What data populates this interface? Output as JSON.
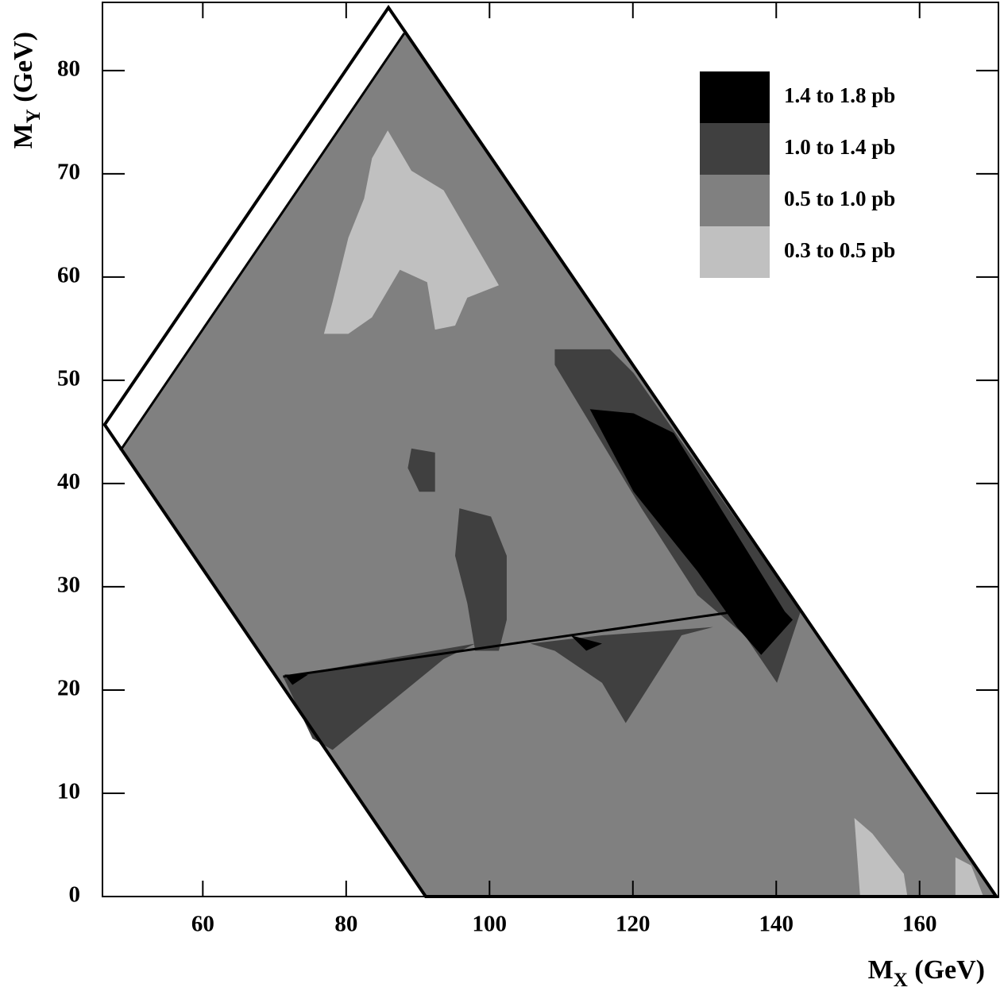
{
  "chart_data": {
    "type": "contour",
    "xlabel": [
      "M",
      "X",
      " (GeV)"
    ],
    "ylabel": [
      "M",
      "Y",
      " (GeV)"
    ],
    "xlim": [
      46,
      171
    ],
    "ylim": [
      0,
      86.6
    ],
    "xticks": [
      60,
      80,
      100,
      120,
      140,
      160
    ],
    "yticks": [
      0,
      10,
      20,
      30,
      40,
      50,
      60,
      70,
      80
    ],
    "legend": "upper right",
    "boundary": [
      [
        46.3,
        45.7
      ],
      [
        85.9,
        86.1
      ],
      [
        170.7,
        0
      ],
      [
        91.1,
        0
      ]
    ],
    "lines": [
      [
        [
          48.5,
          43.2
        ],
        [
          88.1,
          83.6
        ]
      ],
      [
        [
          71.2,
          21.3
        ],
        [
          133.4,
          27.5
        ]
      ]
    ],
    "series": [
      {
        "name": "1.4 to 1.8 pb",
        "color": "#000000",
        "regions": [
          [
            [
              114.0,
              47.2
            ],
            [
              120.1,
              46.8
            ],
            [
              125.7,
              44.9
            ],
            [
              141.2,
              27.6
            ],
            [
              142.3,
              26.8
            ],
            [
              137.9,
              23.4
            ],
            [
              134.5,
              26.1
            ],
            [
              129.0,
              31.5
            ],
            [
              120.1,
              39.2
            ]
          ],
          [
            [
              71.4,
              21.5
            ],
            [
              74.7,
              21.5
            ],
            [
              72.5,
              20.5
            ]
          ],
          [
            [
              111.3,
              25.3
            ],
            [
              115.7,
              24.5
            ],
            [
              113.5,
              23.8
            ]
          ]
        ]
      },
      {
        "name": "1.0 to 1.4 pb",
        "color": "#404040",
        "regions": [
          [
            [
              109.1,
              53.0
            ],
            [
              116.8,
              53.0
            ],
            [
              120.1,
              50.7
            ],
            [
              143.4,
              27.6
            ],
            [
              140.1,
              20.7
            ],
            [
              135.6,
              25.3
            ],
            [
              129.0,
              29.2
            ],
            [
              121.2,
              37.6
            ],
            [
              109.1,
              51.5
            ]
          ],
          [
            [
              71.2,
              21.3
            ],
            [
              98.0,
              24.5
            ],
            [
              93.6,
              23.0
            ],
            [
              86.9,
              19.2
            ],
            [
              78.1,
              14.2
            ],
            [
              75.3,
              15.3
            ]
          ],
          [
            [
              105.7,
              24.5
            ],
            [
              115.7,
              25.3
            ],
            [
              131.2,
              26.1
            ],
            [
              126.8,
              25.3
            ],
            [
              121.2,
              19.2
            ],
            [
              119.0,
              16.8
            ],
            [
              115.7,
              20.7
            ],
            [
              109.1,
              23.8
            ]
          ],
          [
            [
              95.8,
              37.6
            ],
            [
              100.2,
              36.8
            ],
            [
              102.4,
              33.0
            ],
            [
              102.4,
              26.8
            ],
            [
              101.3,
              23.8
            ],
            [
              98.0,
              23.8
            ],
            [
              96.9,
              28.4
            ],
            [
              95.2,
              33.0
            ]
          ],
          [
            [
              89.1,
              43.4
            ],
            [
              92.4,
              43.0
            ],
            [
              92.4,
              39.2
            ],
            [
              90.2,
              39.2
            ],
            [
              88.6,
              41.5
            ]
          ]
        ]
      },
      {
        "name": "0.5 to 1.0 pb",
        "color": "#808080",
        "regions": [
          [
            [
              48.5,
              43.2
            ],
            [
              88.1,
              83.6
            ],
            [
              170.7,
              0
            ],
            [
              91.1,
              0
            ]
          ]
        ]
      },
      {
        "name": "0.3 to 0.5 pb",
        "color": "#c0c0c0",
        "regions": [
          [
            [
              85.8,
              74.2
            ],
            [
              89.1,
              70.3
            ],
            [
              93.6,
              68.4
            ],
            [
              101.3,
              59.2
            ],
            [
              96.9,
              58.0
            ],
            [
              95.2,
              55.3
            ],
            [
              92.4,
              54.9
            ],
            [
              91.3,
              59.5
            ],
            [
              87.5,
              60.7
            ],
            [
              83.6,
              56.1
            ],
            [
              80.3,
              54.5
            ],
            [
              76.9,
              54.5
            ],
            [
              78.1,
              57.6
            ],
            [
              80.3,
              63.8
            ],
            [
              82.5,
              67.6
            ],
            [
              83.6,
              71.5
            ]
          ],
          [
            [
              150.9,
              7.6
            ],
            [
              153.4,
              6.1
            ],
            [
              157.8,
              2.2
            ],
            [
              158.3,
              0
            ],
            [
              151.7,
              0
            ]
          ],
          [
            [
              165.0,
              3.8
            ],
            [
              167.2,
              3.0
            ],
            [
              168.9,
              0
            ],
            [
              165.0,
              0
            ]
          ]
        ]
      }
    ]
  }
}
